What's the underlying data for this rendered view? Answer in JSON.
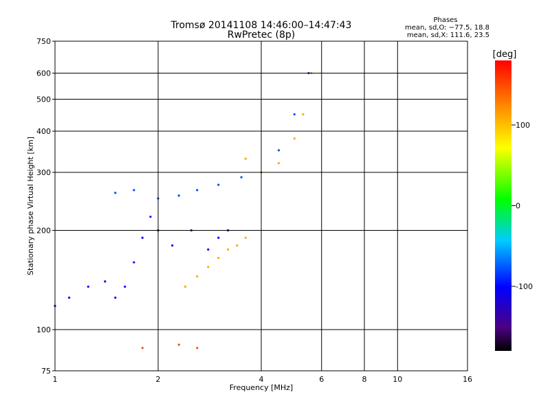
{
  "chart_data": {
    "type": "scatter",
    "title": "Tromsø 20141108 14:46:00–14:47:43",
    "subtitle": "RwPretec (8p)",
    "xlabel": "Frequency [MHz]",
    "ylabel": "Stationary phase Virtual Height [km]",
    "x_scale": "log",
    "y_scale": "log",
    "xlim": [
      1,
      16
    ],
    "ylim": [
      75,
      750
    ],
    "x_ticks": [
      1,
      2,
      4,
      6,
      8,
      10,
      16
    ],
    "y_ticks": [
      75,
      100,
      200,
      300,
      400,
      500,
      600,
      750
    ],
    "grid": true,
    "phases": {
      "title": "Phases",
      "line_o": "mean, sd,O: −77.5, 18.8",
      "line_x": "mean, sd,X: 111.6, 23.5"
    },
    "colorbar": {
      "label": "[deg]",
      "range": [
        -180,
        180
      ],
      "ticks": [
        100,
        0,
        -100
      ]
    },
    "series": [
      {
        "trace": "lower O",
        "points": [
          [
            1.0,
            118
          ],
          [
            1.1,
            125
          ],
          [
            1.25,
            135
          ],
          [
            1.4,
            140
          ],
          [
            1.5,
            125
          ],
          [
            1.6,
            135
          ],
          [
            1.7,
            160
          ],
          [
            1.8,
            190
          ],
          [
            1.9,
            220
          ],
          [
            2.0,
            200
          ],
          [
            2.2,
            180
          ],
          [
            2.5,
            200
          ],
          [
            2.8,
            175
          ],
          [
            3.0,
            190
          ],
          [
            3.2,
            200
          ]
        ],
        "phase": -100
      },
      {
        "trace": "lower X",
        "points": [
          [
            2.4,
            135
          ],
          [
            2.6,
            145
          ],
          [
            2.8,
            155
          ],
          [
            3.0,
            165
          ],
          [
            3.2,
            175
          ],
          [
            3.4,
            180
          ],
          [
            3.6,
            190
          ]
        ],
        "phase": 110
      },
      {
        "trace": "upper O",
        "points": [
          [
            1.5,
            260
          ],
          [
            1.7,
            265
          ],
          [
            2.0,
            250
          ],
          [
            2.3,
            255
          ],
          [
            2.6,
            265
          ],
          [
            3.0,
            275
          ],
          [
            3.5,
            290
          ],
          [
            4.0,
            300
          ],
          [
            4.5,
            350
          ],
          [
            5.0,
            450
          ],
          [
            5.5,
            600
          ]
        ],
        "phase": -80
      },
      {
        "trace": "upper X",
        "points": [
          [
            3.6,
            330
          ],
          [
            4.0,
            300
          ],
          [
            4.5,
            320
          ],
          [
            5.0,
            380
          ],
          [
            5.3,
            450
          ],
          [
            5.6,
            600
          ]
        ],
        "phase": 110
      },
      {
        "trace": "sporadic E",
        "points": [
          [
            1.8,
            88
          ],
          [
            2.3,
            90
          ],
          [
            2.6,
            88
          ]
        ],
        "phase": 150
      }
    ]
  }
}
